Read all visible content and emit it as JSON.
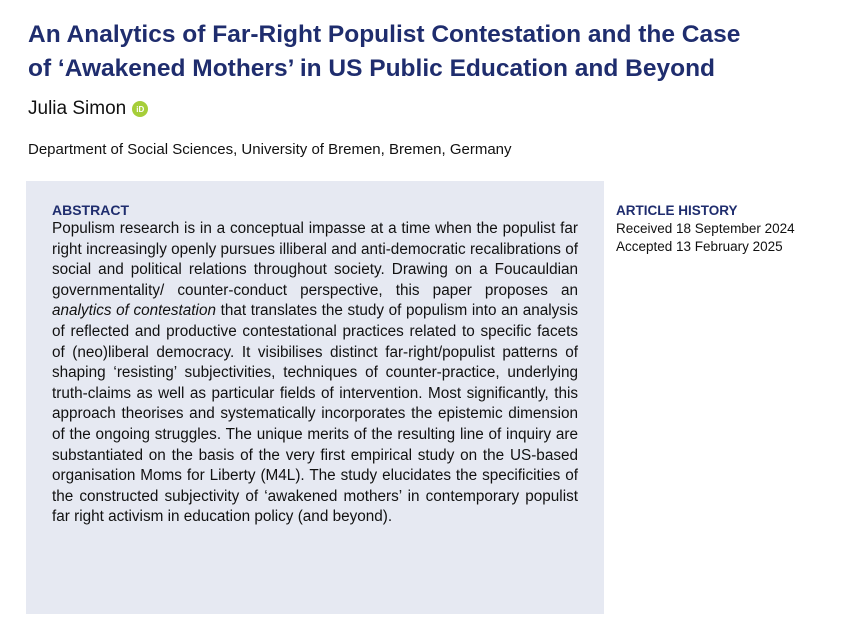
{
  "header": {
    "title_lines": [
      "An Analytics of Far-Right Populist Contestation and the Case",
      "of ‘Awakened Mothers’ in US Public Education and Beyond"
    ],
    "author": "Julia Simon",
    "orcid_icon": "iD",
    "affiliation": "Department of Social Sciences, University of Bremen, Bremen, Germany"
  },
  "abstract": {
    "heading": "ABSTRACT",
    "text_before": "Populism research is in a conceptual impasse at a time when the populist far right increasingly openly pursues illiberal and anti-democratic recalibrations of social and political relations throughout society. Drawing on a Foucauldian governmentality/ counter-conduct perspective, this paper proposes an ",
    "emphasis": "analytics of contestation",
    "text_after": " that translates the study of populism into an analysis of reflected and productive contestational practices related to specific facets of (neo)liberal democracy. It visibilises distinct far-right/populist patterns of shaping ‘resisting’ subjectivities, techniques of counter-practice, underlying truth-claims as well as particular fields of intervention. Most significantly, this approach theorises and systematically incorporates the epistemic dimension of the ongoing struggles. The unique merits of the resulting line of inquiry are substantiated on the basis of the very first empirical study on the US-based organisation Moms for Liberty (M4L). The study elucidates the specificities of the constructed subjectivity of ‘awakened mothers’ in contemporary populist far right activism in education policy (and beyond)."
  },
  "article_history": {
    "heading": "ARTICLE HISTORY",
    "received": "Received 18 September 2024",
    "accepted": "Accepted 13 February 2025"
  }
}
